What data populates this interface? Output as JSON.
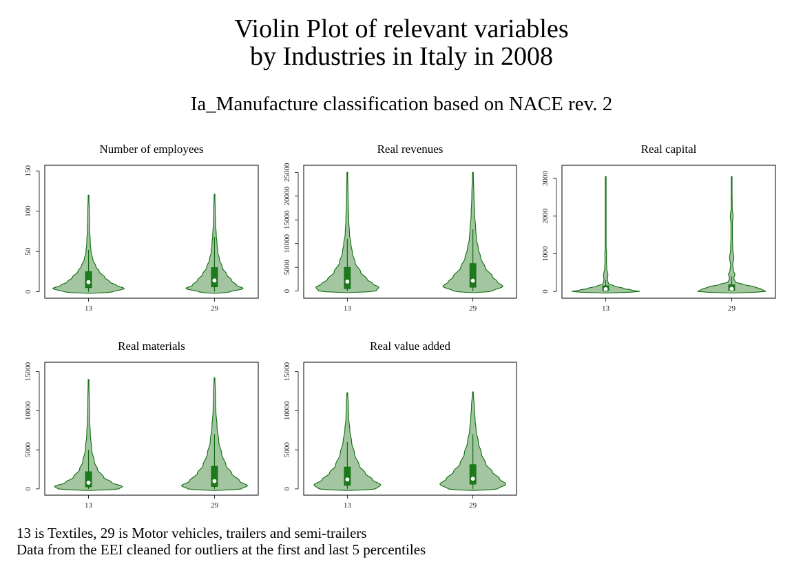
{
  "figure": {
    "title_line1": "Violin Plot of relevant variables",
    "title_line2": "by Industries in Italy in 2008",
    "subtitle": "Ia_Manufacture classification based on NACE rev. 2",
    "note_line1": "13 is Textiles, 29 is Motor vehicles, trailers and semi-trailers",
    "note_line2": "Data from the EEI cleaned for outliers at the first and last 5 percentiles"
  },
  "colors": {
    "violin_fill": "#a3c6a1",
    "violin_stroke": "#0e6b0e",
    "box_fill": "#1c7a1c",
    "median_marker": "#ffffff"
  },
  "chart_data": [
    {
      "type": "violin",
      "title": "Number of employees",
      "categories": [
        "13",
        "29"
      ],
      "ylim": [
        -8,
        157
      ],
      "yticks": [
        0,
        50,
        100,
        150
      ],
      "series": [
        {
          "category": "13",
          "q1": 5,
          "median": 12,
          "q3": 25,
          "whisker_low": 0,
          "whisker_high": 52,
          "profile": [
            [
              0,
              0.7
            ],
            [
              4,
              1.0
            ],
            [
              8,
              0.78
            ],
            [
              12,
              0.6
            ],
            [
              18,
              0.45
            ],
            [
              25,
              0.3
            ],
            [
              32,
              0.2
            ],
            [
              40,
              0.12
            ],
            [
              50,
              0.07
            ],
            [
              60,
              0.05
            ],
            [
              80,
              0.03
            ],
            [
              100,
              0.02
            ],
            [
              120,
              0.01
            ]
          ]
        },
        {
          "category": "29",
          "q1": 6,
          "median": 14,
          "q3": 30,
          "whisker_low": 0,
          "whisker_high": 68,
          "profile": [
            [
              0,
              0.45
            ],
            [
              4,
              0.8
            ],
            [
              8,
              0.62
            ],
            [
              14,
              0.48
            ],
            [
              22,
              0.33
            ],
            [
              30,
              0.22
            ],
            [
              40,
              0.14
            ],
            [
              50,
              0.09
            ],
            [
              60,
              0.07
            ],
            [
              70,
              0.05
            ],
            [
              85,
              0.03
            ],
            [
              100,
              0.02
            ],
            [
              121,
              0.01
            ]
          ]
        }
      ]
    },
    {
      "type": "violin",
      "title": "Real revenues",
      "categories": [
        "13",
        "29"
      ],
      "ylim": [
        -1500,
        26500
      ],
      "yticks": [
        0,
        5000,
        10000,
        15000,
        20000,
        25000
      ],
      "series": [
        {
          "category": "13",
          "q1": 500,
          "median": 2000,
          "q3": 5000,
          "whisker_low": 0,
          "whisker_high": 11000,
          "profile": [
            [
              0,
              0.8
            ],
            [
              800,
              0.88
            ],
            [
              1500,
              0.72
            ],
            [
              2500,
              0.55
            ],
            [
              4000,
              0.37
            ],
            [
              6000,
              0.22
            ],
            [
              8000,
              0.14
            ],
            [
              10000,
              0.1
            ],
            [
              12000,
              0.06
            ],
            [
              15000,
              0.04
            ],
            [
              20000,
              0.02
            ],
            [
              25000,
              0.01
            ]
          ]
        },
        {
          "category": "29",
          "q1": 800,
          "median": 2200,
          "q3": 5800,
          "whisker_low": 0,
          "whisker_high": 13000,
          "profile": [
            [
              0,
              0.55
            ],
            [
              1000,
              0.84
            ],
            [
              2000,
              0.68
            ],
            [
              3000,
              0.55
            ],
            [
              5000,
              0.34
            ],
            [
              7000,
              0.22
            ],
            [
              9000,
              0.15
            ],
            [
              11000,
              0.1
            ],
            [
              13000,
              0.08
            ],
            [
              16000,
              0.05
            ],
            [
              20000,
              0.03
            ],
            [
              25000,
              0.01
            ]
          ]
        }
      ]
    },
    {
      "type": "violin",
      "title": "Real capital",
      "categories": [
        "13",
        "29"
      ],
      "ylim": [
        -180,
        3350
      ],
      "yticks": [
        0,
        1000,
        2000,
        3000
      ],
      "series": [
        {
          "category": "13",
          "q1": 20,
          "median": 60,
          "q3": 150,
          "whisker_low": 0,
          "whisker_high": 300,
          "profile": [
            [
              0,
              0.95
            ],
            [
              30,
              0.75
            ],
            [
              80,
              0.5
            ],
            [
              140,
              0.25
            ],
            [
              200,
              0.08
            ],
            [
              300,
              0.05
            ],
            [
              450,
              0.06
            ],
            [
              600,
              0.03
            ],
            [
              800,
              0.02
            ],
            [
              1000,
              0.025
            ],
            [
              1200,
              0.01
            ],
            [
              1500,
              0.01
            ],
            [
              3050,
              0.005
            ]
          ]
        },
        {
          "category": "29",
          "q1": 30,
          "median": 70,
          "q3": 180,
          "whisker_low": 0,
          "whisker_high": 400,
          "profile": [
            [
              0,
              0.95
            ],
            [
              50,
              0.85
            ],
            [
              120,
              0.65
            ],
            [
              180,
              0.35
            ],
            [
              250,
              0.1
            ],
            [
              350,
              0.06
            ],
            [
              450,
              0.09
            ],
            [
              550,
              0.05
            ],
            [
              700,
              0.03
            ],
            [
              900,
              0.06
            ],
            [
              1100,
              0.03
            ],
            [
              1500,
              0.02
            ],
            [
              1800,
              0.02
            ],
            [
              2000,
              0.04
            ],
            [
              2200,
              0.015
            ],
            [
              3050,
              0.005
            ]
          ]
        }
      ]
    },
    {
      "type": "violin",
      "title": "Real materials",
      "categories": [
        "13",
        "29"
      ],
      "ylim": [
        -800,
        16200
      ],
      "yticks": [
        0,
        5000,
        10000,
        15000
      ],
      "series": [
        {
          "category": "13",
          "q1": 250,
          "median": 800,
          "q3": 2200,
          "whisker_low": 0,
          "whisker_high": 5000,
          "profile": [
            [
              0,
              0.85
            ],
            [
              300,
              0.95
            ],
            [
              800,
              0.65
            ],
            [
              1500,
              0.42
            ],
            [
              2500,
              0.25
            ],
            [
              3500,
              0.16
            ],
            [
              5000,
              0.09
            ],
            [
              7000,
              0.05
            ],
            [
              9000,
              0.03
            ],
            [
              11000,
              0.02
            ],
            [
              14000,
              0.01
            ]
          ]
        },
        {
          "category": "29",
          "q1": 300,
          "median": 1000,
          "q3": 2900,
          "whisker_low": 0,
          "whisker_high": 7000,
          "profile": [
            [
              0,
              0.75
            ],
            [
              400,
              0.92
            ],
            [
              1000,
              0.7
            ],
            [
              2000,
              0.48
            ],
            [
              3000,
              0.32
            ],
            [
              4500,
              0.2
            ],
            [
              6000,
              0.12
            ],
            [
              8000,
              0.07
            ],
            [
              10000,
              0.04
            ],
            [
              12000,
              0.03
            ],
            [
              14200,
              0.01
            ]
          ]
        }
      ]
    },
    {
      "type": "violin",
      "title": "Real value added",
      "categories": [
        "13",
        "29"
      ],
      "ylim": [
        -800,
        16200
      ],
      "yticks": [
        0,
        5000,
        10000,
        15000
      ],
      "series": [
        {
          "category": "13",
          "q1": 450,
          "median": 1200,
          "q3": 2800,
          "whisker_low": 0,
          "whisker_high": 6000,
          "profile": [
            [
              0,
              0.8
            ],
            [
              500,
              0.93
            ],
            [
              1200,
              0.7
            ],
            [
              2000,
              0.5
            ],
            [
              3000,
              0.33
            ],
            [
              4500,
              0.2
            ],
            [
              6000,
              0.12
            ],
            [
              7500,
              0.07
            ],
            [
              9000,
              0.04
            ],
            [
              10500,
              0.03
            ],
            [
              12300,
              0.01
            ]
          ]
        },
        {
          "category": "29",
          "q1": 600,
          "median": 1300,
          "q3": 3100,
          "whisker_low": 0,
          "whisker_high": 7000,
          "profile": [
            [
              0,
              0.7
            ],
            [
              600,
              0.92
            ],
            [
              1300,
              0.74
            ],
            [
              2200,
              0.54
            ],
            [
              3200,
              0.36
            ],
            [
              4500,
              0.24
            ],
            [
              6000,
              0.15
            ],
            [
              7500,
              0.09
            ],
            [
              9000,
              0.06
            ],
            [
              10500,
              0.04
            ],
            [
              12400,
              0.01
            ]
          ]
        }
      ]
    }
  ]
}
